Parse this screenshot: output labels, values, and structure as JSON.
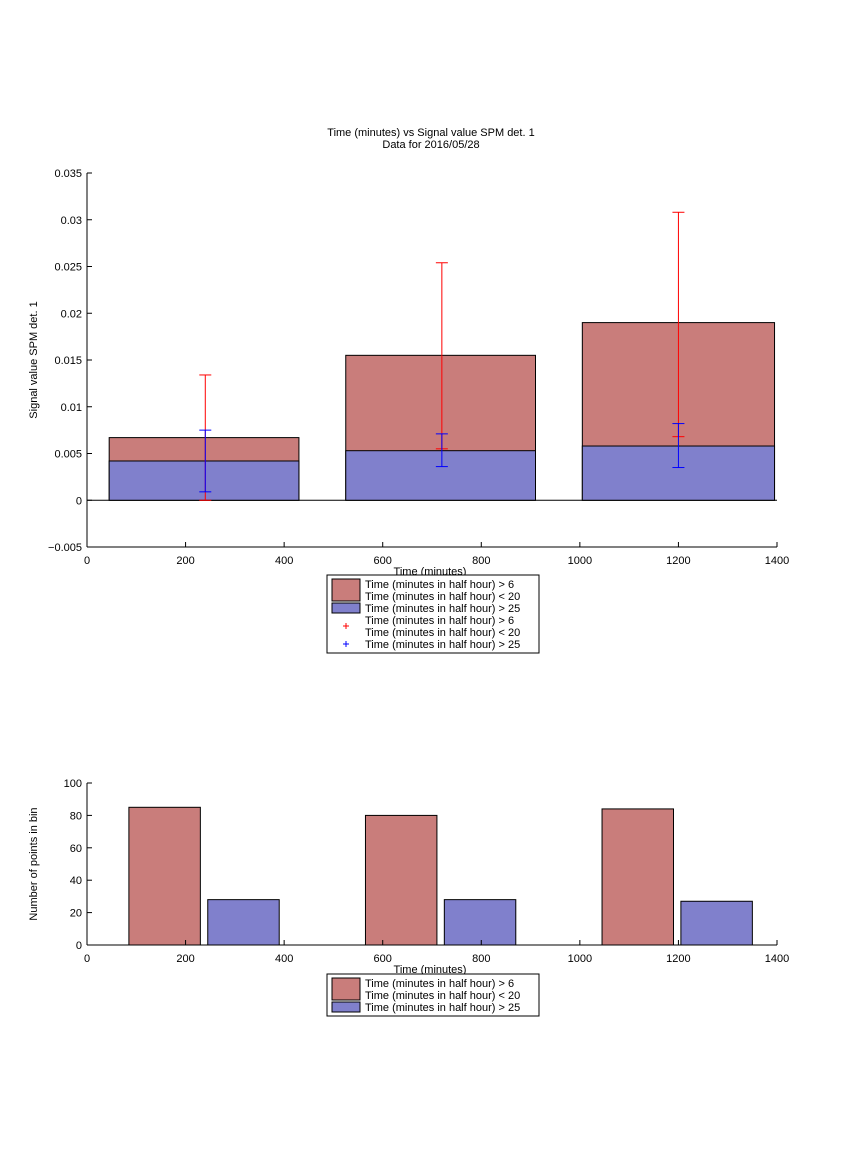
{
  "chart_data": [
    {
      "type": "bar",
      "title": "Time (minutes) vs Signal value SPM det. 1",
      "subtitle": "Data for 2016/05/28",
      "xlabel": "Time (minutes)",
      "ylabel": "Signal value SPM det. 1",
      "xlim": [
        0,
        1400
      ],
      "ylim": [
        -0.005,
        0.035
      ],
      "xticks": [
        "0",
        "200",
        "400",
        "600",
        "800",
        "1000",
        "1200",
        "1400"
      ],
      "yticks": [
        "−0.005",
        "0",
        "0.005",
        "0.01",
        "0.015",
        "0.02",
        "0.025",
        "0.03",
        "0.035"
      ],
      "bar_groups": [
        {
          "x_start": 45,
          "x_end": 430
        },
        {
          "x_start": 525,
          "x_end": 910
        },
        {
          "x_start": 1005,
          "x_end": 1395
        }
      ],
      "series": [
        {
          "name": "Time (minutes in half hour) > 6\nTime (minutes in half hour) < 20",
          "color": "#c97d7b",
          "values": [
            0.0067,
            0.0155,
            0.019
          ]
        },
        {
          "name": "Time (minutes in half hour) > 25",
          "color": "#8080cc",
          "values": [
            0.0042,
            0.0053,
            0.0058
          ]
        }
      ],
      "errorbars": [
        {
          "name": "Time (minutes in half hour) > 6\nTime (minutes in half hour) < 20",
          "color": "#ff0000",
          "x": [
            240,
            720,
            1200
          ],
          "low": [
            0.0,
            0.0055,
            0.0068
          ],
          "high": [
            0.0134,
            0.0254,
            0.0308
          ]
        },
        {
          "name": "Time (minutes in half hour) > 25",
          "color": "#0000ff",
          "x": [
            240,
            720,
            1200
          ],
          "low": [
            0.0009,
            0.0036,
            0.0035
          ],
          "high": [
            0.0075,
            0.0071,
            0.0082
          ]
        }
      ],
      "legend": [
        {
          "kind": "patch",
          "color": "#c97d7b",
          "lines": [
            "Time (minutes in half hour) > 6",
            "Time (minutes in half hour) < 20"
          ]
        },
        {
          "kind": "patch",
          "color": "#8080cc",
          "lines": [
            "Time (minutes in half hour) > 25"
          ]
        },
        {
          "kind": "marker",
          "color": "#ff0000",
          "lines": [
            "Time (minutes in half hour) > 6",
            "Time (minutes in half hour) < 20"
          ]
        },
        {
          "kind": "marker",
          "color": "#0000ff",
          "lines": [
            "Time (minutes in half hour) > 25"
          ]
        }
      ],
      "legend_placement": "below"
    },
    {
      "type": "bar",
      "title": "",
      "xlabel": "Time (minutes)",
      "ylabel": "Number of points in bin",
      "xlim": [
        0,
        1400
      ],
      "ylim": [
        0,
        100
      ],
      "xticks": [
        "0",
        "200",
        "400",
        "600",
        "800",
        "1000",
        "1200",
        "1400"
      ],
      "yticks": [
        "0",
        "20",
        "40",
        "60",
        "80",
        "100"
      ],
      "series": [
        {
          "name": "Time (minutes in half hour) > 6\nTime (minutes in half hour) < 20",
          "color": "#c97d7b",
          "x_ranges": [
            [
              85,
              230
            ],
            [
              565,
              710
            ],
            [
              1045,
              1190
            ]
          ],
          "values": [
            85,
            80,
            84
          ]
        },
        {
          "name": "Time (minutes in half hour) > 25",
          "color": "#8080cc",
          "x_ranges": [
            [
              245,
              390
            ],
            [
              725,
              870
            ],
            [
              1205,
              1350
            ]
          ],
          "values": [
            28,
            28,
            27
          ]
        }
      ],
      "legend": [
        {
          "kind": "patch",
          "color": "#c97d7b",
          "lines": [
            "Time (minutes in half hour) > 6",
            "Time (minutes in half hour) < 20"
          ]
        },
        {
          "kind": "patch",
          "color": "#8080cc",
          "lines": [
            "Time (minutes in half hour) > 25"
          ]
        }
      ],
      "legend_placement": "below"
    }
  ]
}
